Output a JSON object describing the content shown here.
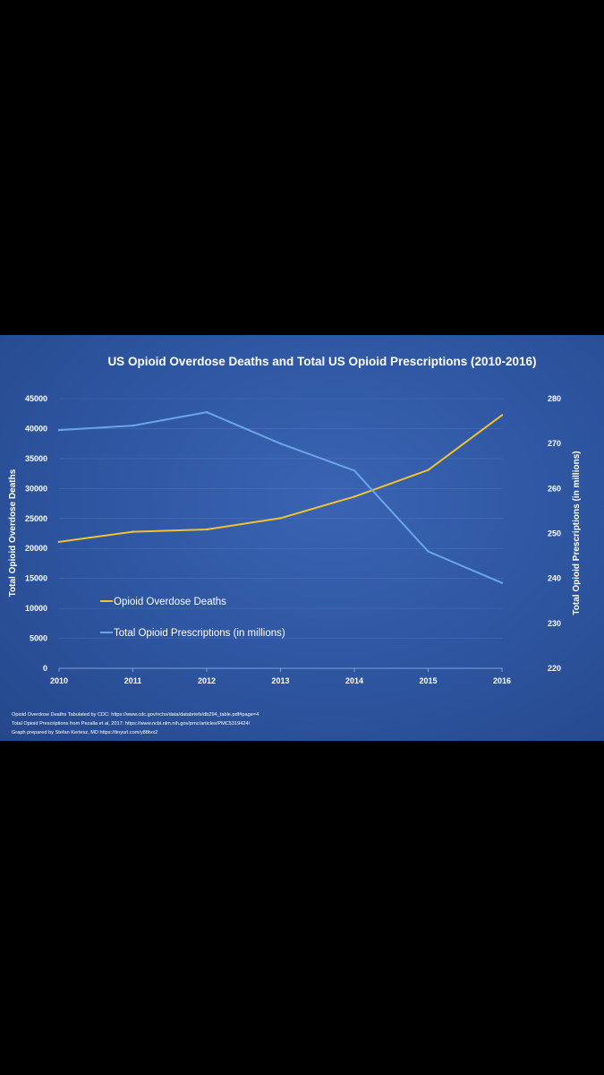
{
  "chart_data": {
    "type": "line",
    "title": "US Opioid Overdose Deaths and Total US Opioid Prescriptions (2010-2016)",
    "x": [
      "2010",
      "2011",
      "2012",
      "2013",
      "2014",
      "2015",
      "2016"
    ],
    "series": [
      {
        "name": "Opioid Overdose Deaths",
        "axis": "left",
        "color": "#f2c230",
        "values": [
          21089,
          22784,
          23166,
          25052,
          28647,
          33091,
          42249
        ]
      },
      {
        "name": "Total Opioid Prescriptions (in millions)",
        "axis": "right",
        "color": "#6aa6e6",
        "values": [
          273,
          274,
          277,
          270,
          264,
          246,
          239
        ]
      }
    ],
    "y_left": {
      "label": "Total Opioid Overdose Deaths",
      "lim": [
        0,
        45000
      ],
      "ticks": [
        "0",
        "5000",
        "10000",
        "15000",
        "20000",
        "25000",
        "30000",
        "35000",
        "40000",
        "45000"
      ]
    },
    "y_right": {
      "label": "Total Opioid Prescriptions (in millions)",
      "lim": [
        220,
        280
      ],
      "ticks": [
        "220",
        "230",
        "240",
        "250",
        "260",
        "270",
        "280"
      ]
    },
    "legend": [
      "Opioid Overdose Deaths",
      "Total Opioid Prescriptions (in millions)"
    ],
    "legend_position": "lower-left",
    "grid": true
  },
  "footnotes": [
    "Opioid Overdose Deaths Tabulated by CDC: https://www.cdc.gov/nchs/data/databriefs/db294_table.pdf#page=4",
    "Total Opioid Prescriptions from Pezalla et al, 2017: https://www.ncbi.nlm.nih.gov/pmc/articles/PMC5319424/",
    "Graph prepared by Stefan Kertesz, MD   https://tinyurl.com/y88tvx2"
  ]
}
